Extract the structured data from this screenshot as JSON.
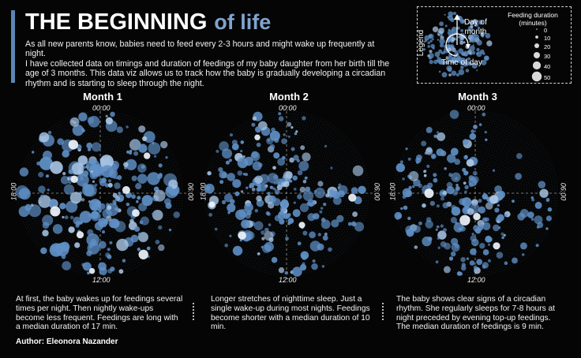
{
  "header": {
    "title_bold": "THE BEGINNING",
    "title_light": "of life",
    "intro_1": "As all new parents know, babies need to feed every 2-3 hours and might wake up frequently at night.",
    "intro_2": "I have collected data on timings and duration of feedings of my baby daughter from her birth till the age of 3 months. This data viz allows us to track how the baby is gradually developing a circadian rhythm and is starting to sleep through the night."
  },
  "legend": {
    "label": "Legend",
    "day_of_month": "Day of\nmonth",
    "time_of_day": "Time of day",
    "size_title": "Feeding duration\n(minutes)",
    "sizes": [
      0,
      10,
      20,
      30,
      40,
      50
    ]
  },
  "hour_labels": {
    "top": "00:00",
    "right": "06:00",
    "bottom": "12:00",
    "left": "18:00"
  },
  "colors": {
    "background": "#050505",
    "dot_blue": "#5f90c6",
    "dot_light": "#a9c6e6",
    "accent": "#5b86b5"
  },
  "chart_data": [
    {
      "type": "scatter",
      "title": "Month 1",
      "x_axis": "time of day (angle, clockwise from 00:00)",
      "y_axis": "day of month (radius)",
      "size": "feeding duration (minutes)",
      "median_duration_min": 17,
      "pattern": "feedings spread evenly around the whole day, several times per night"
    },
    {
      "type": "scatter",
      "title": "Month 2",
      "x_axis": "time of day (angle, clockwise from 00:00)",
      "y_axis": "day of month (radius)",
      "size": "feeding duration (minutes)",
      "median_duration_min": 10,
      "pattern": "longer stretches of nighttime sleep, a single wake-up during most nights"
    },
    {
      "type": "scatter",
      "title": "Month 3",
      "x_axis": "time of day (angle, clockwise from 00:00)",
      "y_axis": "day of month (radius)",
      "size": "feeding duration (minutes)",
      "median_duration_min": 9,
      "pattern": "7-8 hour night sleep (00:00-06:00 sector nearly empty), evening top-up feedings"
    }
  ],
  "captions": [
    "At first, the baby wakes up for feedings several times per night. Then nightly wake-ups become less frequent. Feedings are long with a median duration of 17 min.",
    "Longer stretches of nighttime sleep. Just a single wake-up during most nights. Feedings become shorter with a median duration of 10 min.",
    "The baby shows clear signs of a circadian rhythm. She regularly sleeps for 7-8 hours at night preceded by evening top-up feedings. The median duration of feedings is 9 min."
  ],
  "author": "Author: Eleonora Nazander"
}
